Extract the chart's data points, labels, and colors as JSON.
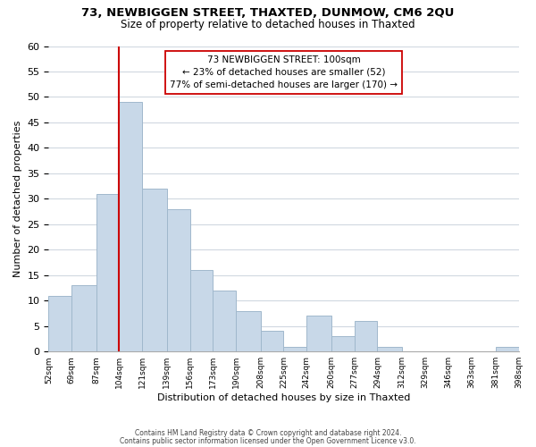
{
  "title": "73, NEWBIGGEN STREET, THAXTED, DUNMOW, CM6 2QU",
  "subtitle": "Size of property relative to detached houses in Thaxted",
  "xlabel": "Distribution of detached houses by size in Thaxted",
  "ylabel": "Number of detached properties",
  "bar_color": "#c8d8e8",
  "bar_edge_color": "#a0b8cc",
  "bins": [
    52,
    69,
    87,
    104,
    121,
    139,
    156,
    173,
    190,
    208,
    225,
    242,
    260,
    277,
    294,
    312,
    329,
    346,
    363,
    381,
    398
  ],
  "counts": [
    11,
    13,
    31,
    49,
    32,
    28,
    16,
    12,
    8,
    4,
    1,
    7,
    3,
    6,
    1,
    0,
    0,
    0,
    0,
    1
  ],
  "tick_labels": [
    "52sqm",
    "69sqm",
    "87sqm",
    "104sqm",
    "121sqm",
    "139sqm",
    "156sqm",
    "173sqm",
    "190sqm",
    "208sqm",
    "225sqm",
    "242sqm",
    "260sqm",
    "277sqm",
    "294sqm",
    "312sqm",
    "329sqm",
    "346sqm",
    "363sqm",
    "381sqm",
    "398sqm"
  ],
  "vline_x": 104,
  "vline_color": "#cc0000",
  "annotation_title": "73 NEWBIGGEN STREET: 100sqm",
  "annotation_line1": "← 23% of detached houses are smaller (52)",
  "annotation_line2": "77% of semi-detached houses are larger (170) →",
  "annotation_box_edge": "#cc0000",
  "ylim": [
    0,
    60
  ],
  "yticks": [
    0,
    5,
    10,
    15,
    20,
    25,
    30,
    35,
    40,
    45,
    50,
    55,
    60
  ],
  "footer1": "Contains HM Land Registry data © Crown copyright and database right 2024.",
  "footer2": "Contains public sector information licensed under the Open Government Licence v3.0.",
  "bg_color": "#ffffff",
  "grid_color": "#d0d8e0"
}
